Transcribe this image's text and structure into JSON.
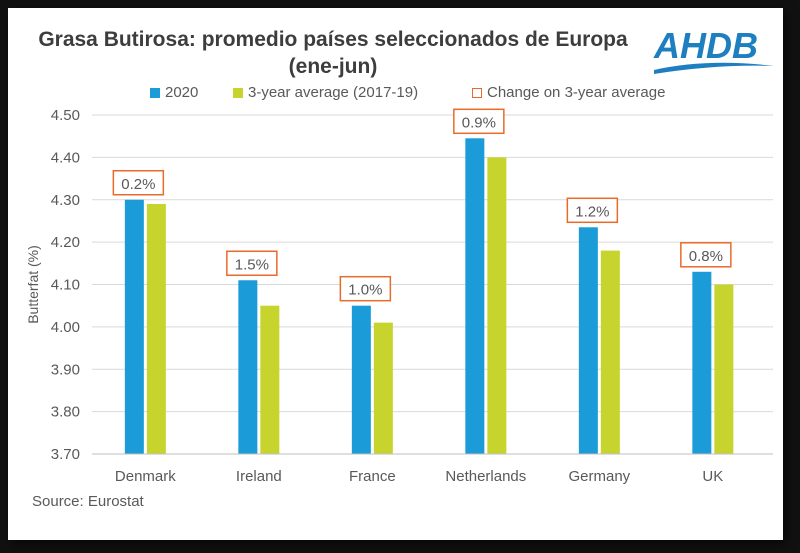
{
  "header": {
    "title_line1": "Grasa Butirosa: promedio países seleccionados de Europa",
    "title_line2": "(ene-jun)"
  },
  "logo": {
    "text": "AHDB"
  },
  "source": "Source: Eurostat",
  "colors": {
    "series_2020": "#1b9bd7",
    "series_avg": "#c7d42e",
    "change_box": "#e86b2a",
    "axis_text": "#595959",
    "grid": "#d9d9d9",
    "logo": "#1e7fc0"
  },
  "chart_data": {
    "type": "bar",
    "title": "Grasa Butirosa: promedio países seleccionados de Europa (ene-jun)",
    "xlabel": "",
    "ylabel": "Butterfat (%)",
    "ylim": [
      3.7,
      4.5
    ],
    "yticks": [
      "3.70",
      "3.80",
      "3.90",
      "4.00",
      "4.10",
      "4.20",
      "4.30",
      "4.40",
      "4.50"
    ],
    "categories": [
      "Denmark",
      "Ireland",
      "France",
      "Netherlands",
      "Germany",
      "UK"
    ],
    "series": [
      {
        "name": "2020",
        "values": [
          4.3,
          4.11,
          4.05,
          4.445,
          4.235,
          4.13
        ]
      },
      {
        "name": "3-year average (2017-19)",
        "values": [
          4.29,
          4.05,
          4.01,
          4.4,
          4.18,
          4.1
        ]
      }
    ],
    "change_series_name": "Change on 3-year average",
    "change_labels": [
      "0.2%",
      "1.5%",
      "1.0%",
      "0.9%",
      "1.2%",
      "0.8%"
    ],
    "legend_position": "top",
    "grid": true
  }
}
